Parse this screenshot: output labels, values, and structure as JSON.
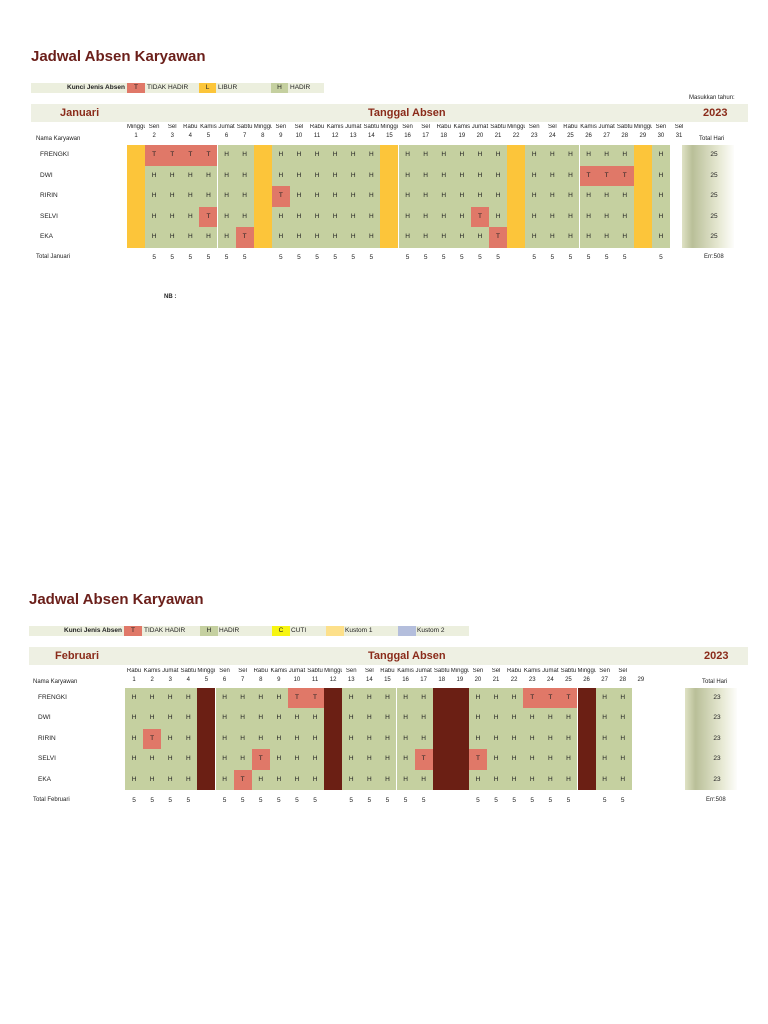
{
  "colors": {
    "hadir": "#c5d0a0",
    "tidak_hadir": "#e07868",
    "libur": "#fcc53a",
    "weekend_feb": "#6b1f14",
    "cuti": "#f7f511",
    "kustom1": "#fde08a",
    "kustom2": "#b4bedc",
    "title": "#6b1f1a",
    "header_text": "#8a2b1a",
    "legend_bg": "#ecefde"
  },
  "january": {
    "title": "Jadwal Absen Karyawan",
    "legend": {
      "label": "Kunci Jenis Absen",
      "items": [
        {
          "code": "T",
          "text": "TIDAK HADIR"
        },
        {
          "code": "L",
          "text": "LIBUR"
        },
        {
          "code": "H",
          "text": "HADIR"
        }
      ]
    },
    "year_prompt": "Masukkan tahun:",
    "month_name": "Januari",
    "header_center": "Tanggal Absen",
    "year": "2023",
    "name_col_header": "Nama Karyawan",
    "total_col_header": "Total Hari",
    "day_names": [
      "Minggu",
      "Sen",
      "Sel",
      "Rabu",
      "Kamis",
      "Jumat",
      "Sabtu",
      "Minggu",
      "Sen",
      "Sel",
      "Rabu",
      "Kamis",
      "Jumat",
      "Sabtu",
      "Minggu",
      "Sen",
      "Sel",
      "Rabu",
      "Kamis",
      "Jumat",
      "Sabtu",
      "Minggu",
      "Sen",
      "Sel",
      "Rabu",
      "Kamis",
      "Jumat",
      "Sabtu",
      "Minggu",
      "Sen",
      "Sel"
    ],
    "dates": [
      "1",
      "2",
      "3",
      "4",
      "5",
      "6",
      "7",
      "8",
      "9",
      "10",
      "11",
      "12",
      "13",
      "14",
      "15",
      "16",
      "17",
      "18",
      "19",
      "20",
      "21",
      "22",
      "23",
      "24",
      "25",
      "26",
      "27",
      "28",
      "29",
      "30",
      "31"
    ],
    "rows": [
      {
        "name": "FRENGKI",
        "cells": [
          "L",
          "T",
          "T",
          "T",
          "T",
          "H",
          "H",
          "L",
          "H",
          "H",
          "H",
          "H",
          "H",
          "H",
          "L",
          "H",
          "H",
          "H",
          "H",
          "H",
          "H",
          "L",
          "H",
          "H",
          "H",
          "H",
          "H",
          "H",
          "L",
          "H",
          ""
        ],
        "total": "25"
      },
      {
        "name": "DWI",
        "cells": [
          "L",
          "H",
          "H",
          "H",
          "H",
          "H",
          "H",
          "L",
          "H",
          "H",
          "H",
          "H",
          "H",
          "H",
          "L",
          "H",
          "H",
          "H",
          "H",
          "H",
          "H",
          "L",
          "H",
          "H",
          "H",
          "T",
          "T",
          "T",
          "L",
          "H",
          ""
        ],
        "total": "25"
      },
      {
        "name": "RIRIN",
        "cells": [
          "L",
          "H",
          "H",
          "H",
          "H",
          "H",
          "H",
          "L",
          "T",
          "H",
          "H",
          "H",
          "H",
          "H",
          "L",
          "H",
          "H",
          "H",
          "H",
          "H",
          "H",
          "L",
          "H",
          "H",
          "H",
          "H",
          "H",
          "H",
          "L",
          "H",
          ""
        ],
        "total": "25"
      },
      {
        "name": "SELVI",
        "cells": [
          "L",
          "H",
          "H",
          "H",
          "T",
          "H",
          "H",
          "L",
          "H",
          "H",
          "H",
          "H",
          "H",
          "H",
          "L",
          "H",
          "H",
          "H",
          "H",
          "T",
          "H",
          "L",
          "H",
          "H",
          "H",
          "H",
          "H",
          "H",
          "L",
          "H",
          ""
        ],
        "total": "25"
      },
      {
        "name": "EKA",
        "cells": [
          "L",
          "H",
          "H",
          "H",
          "H",
          "H",
          "T",
          "L",
          "H",
          "H",
          "H",
          "H",
          "H",
          "H",
          "L",
          "H",
          "H",
          "H",
          "H",
          "H",
          "T",
          "L",
          "H",
          "H",
          "H",
          "H",
          "H",
          "H",
          "L",
          "H",
          ""
        ],
        "total": "25"
      }
    ],
    "total_label": "Total Januari",
    "day_totals": [
      "",
      "5",
      "5",
      "5",
      "5",
      "5",
      "5",
      "",
      "5",
      "5",
      "5",
      "5",
      "5",
      "5",
      "",
      "5",
      "5",
      "5",
      "5",
      "5",
      "5",
      "",
      "5",
      "5",
      "5",
      "5",
      "5",
      "5",
      "",
      "5",
      ""
    ],
    "total_err": "Err:508",
    "note": "NB :"
  },
  "february": {
    "title": "Jadwal Absen Karyawan",
    "legend": {
      "label": "Kunci Jenis Absen",
      "items": [
        {
          "code": "T",
          "text": "TIDAK HADIR"
        },
        {
          "code": "H",
          "text": "HADIR"
        },
        {
          "code": "C",
          "text": "CUTI"
        },
        {
          "code": "",
          "text": "Kustom 1"
        },
        {
          "code": "",
          "text": "Kustom 2"
        }
      ]
    },
    "month_name": "Februari",
    "header_center": "Tanggal Absen",
    "year": "2023",
    "name_col_header": "Nama Karyawan",
    "total_col_header": "Total Hari",
    "day_names": [
      "Rabu",
      "Kamis",
      "Jumat",
      "Sabtu",
      "Minggu",
      "Sen",
      "Sel",
      "Rabu",
      "Kamis",
      "Jumat",
      "Sabtu",
      "Minggu",
      "Sen",
      "Sel",
      "Rabu",
      "Kamis",
      "Jumat",
      "Sabtu",
      "Minggu",
      "Sen",
      "Sel",
      "Rabu",
      "Kamis",
      "Jumat",
      "Sabtu",
      "Minggu",
      "Sen",
      "Sel",
      ""
    ],
    "dates": [
      "1",
      "2",
      "3",
      "4",
      "5",
      "6",
      "7",
      "8",
      "9",
      "10",
      "11",
      "12",
      "13",
      "14",
      "15",
      "16",
      "17",
      "18",
      "19",
      "20",
      "21",
      "22",
      "23",
      "24",
      "25",
      "26",
      "27",
      "28",
      "29"
    ],
    "rows": [
      {
        "name": "FRENGKI",
        "cells": [
          "H",
          "H",
          "H",
          "H",
          "W",
          "H",
          "H",
          "H",
          "H",
          "T",
          "T",
          "W",
          "H",
          "H",
          "H",
          "H",
          "H",
          "W",
          "W",
          "H",
          "H",
          "H",
          "T",
          "T",
          "T",
          "W",
          "H",
          "H",
          ""
        ],
        "total": "23"
      },
      {
        "name": "DWI",
        "cells": [
          "H",
          "H",
          "H",
          "H",
          "W",
          "H",
          "H",
          "H",
          "H",
          "H",
          "H",
          "W",
          "H",
          "H",
          "H",
          "H",
          "H",
          "W",
          "W",
          "H",
          "H",
          "H",
          "H",
          "H",
          "H",
          "W",
          "H",
          "H",
          ""
        ],
        "total": "23"
      },
      {
        "name": "RIRIN",
        "cells": [
          "H",
          "T",
          "H",
          "H",
          "W",
          "H",
          "H",
          "H",
          "H",
          "H",
          "H",
          "W",
          "H",
          "H",
          "H",
          "H",
          "H",
          "W",
          "W",
          "H",
          "H",
          "H",
          "H",
          "H",
          "H",
          "W",
          "H",
          "H",
          ""
        ],
        "total": "23"
      },
      {
        "name": "SELVI",
        "cells": [
          "H",
          "H",
          "H",
          "H",
          "W",
          "H",
          "H",
          "T",
          "H",
          "H",
          "H",
          "W",
          "H",
          "H",
          "H",
          "H",
          "T",
          "W",
          "W",
          "T",
          "H",
          "H",
          "H",
          "H",
          "H",
          "W",
          "H",
          "H",
          ""
        ],
        "total": "23"
      },
      {
        "name": "EKA",
        "cells": [
          "H",
          "H",
          "H",
          "H",
          "W",
          "H",
          "T",
          "H",
          "H",
          "H",
          "H",
          "W",
          "H",
          "H",
          "H",
          "H",
          "H",
          "W",
          "W",
          "H",
          "H",
          "H",
          "H",
          "H",
          "H",
          "W",
          "H",
          "H",
          ""
        ],
        "total": "23"
      }
    ],
    "total_label": "Total Februari",
    "day_totals": [
      "5",
      "5",
      "5",
      "5",
      "",
      "5",
      "5",
      "5",
      "5",
      "5",
      "5",
      "",
      "5",
      "5",
      "5",
      "5",
      "5",
      "",
      "",
      "5",
      "5",
      "5",
      "5",
      "5",
      "5",
      "",
      "5",
      "5",
      ""
    ],
    "total_err": "Err:508"
  }
}
